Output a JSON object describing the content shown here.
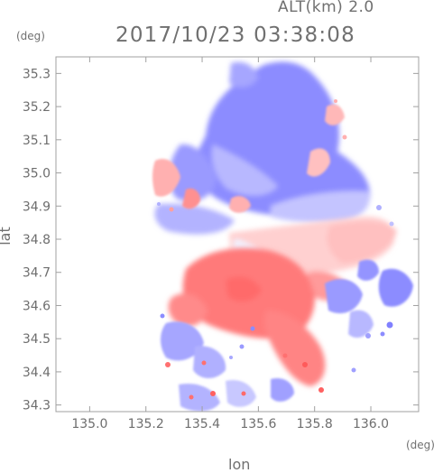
{
  "header": {
    "altitude": "ALT(km) 2.0",
    "timestamp": "2017/10/23 03:38:08"
  },
  "axes": {
    "y_unit": "(deg)",
    "x_unit": "(deg)",
    "y_label": "lat",
    "x_label": "lon",
    "x_ticks": [
      "135.0",
      "135.2",
      "135.4",
      "135.6",
      "135.8",
      "136.0"
    ],
    "y_ticks": [
      "35.3",
      "35.2",
      "35.1",
      "35.0",
      "34.9",
      "34.8",
      "34.7",
      "34.6",
      "34.5",
      "34.4",
      "34.3"
    ],
    "x_range": [
      134.88,
      136.17
    ],
    "y_range": [
      34.28,
      35.35
    ]
  },
  "colors": {
    "approaching": "#8c8cff",
    "receding": "#ff8080",
    "frame": "#a0a0a0"
  }
}
